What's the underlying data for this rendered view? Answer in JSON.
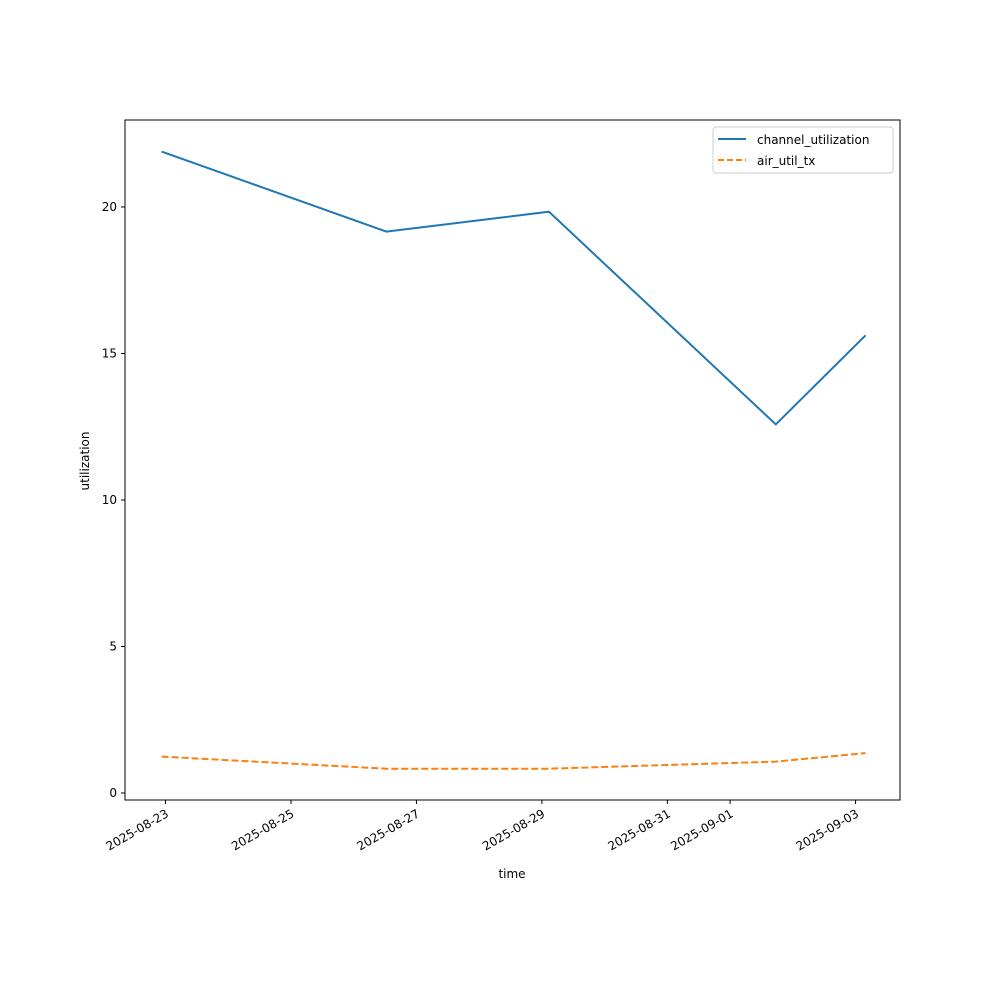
{
  "chart_data": {
    "type": "line",
    "title": "",
    "xlabel": "time",
    "ylabel": "utilization",
    "x": [
      "2025-08-22T22:30",
      "2025-08-26T12:30",
      "2025-08-29T02:40",
      "2025-09-01T17:30",
      "2025-09-03T03:50"
    ],
    "series": [
      {
        "name": "channel_utilization",
        "values": [
          21.89,
          19.16,
          19.84,
          12.58,
          15.62
        ],
        "color": "#1f77b4",
        "style": "solid"
      },
      {
        "name": "air_util_tx",
        "values": [
          1.24,
          0.83,
          0.83,
          1.07,
          1.36
        ],
        "color": "#ff7f0e",
        "style": "dashed"
      }
    ],
    "ylim": [
      -0.24,
      22.97
    ],
    "xlim": [
      "2025-08-22T08:30",
      "2025-09-03T17:00"
    ],
    "yticks": [
      0,
      5,
      10,
      15,
      20
    ],
    "xticks": [
      "2025-08-23",
      "2025-08-25",
      "2025-08-27",
      "2025-08-29",
      "2025-08-31",
      "2025-09-01",
      "2025-09-03"
    ],
    "grid": false,
    "legend_position": "top-right"
  }
}
